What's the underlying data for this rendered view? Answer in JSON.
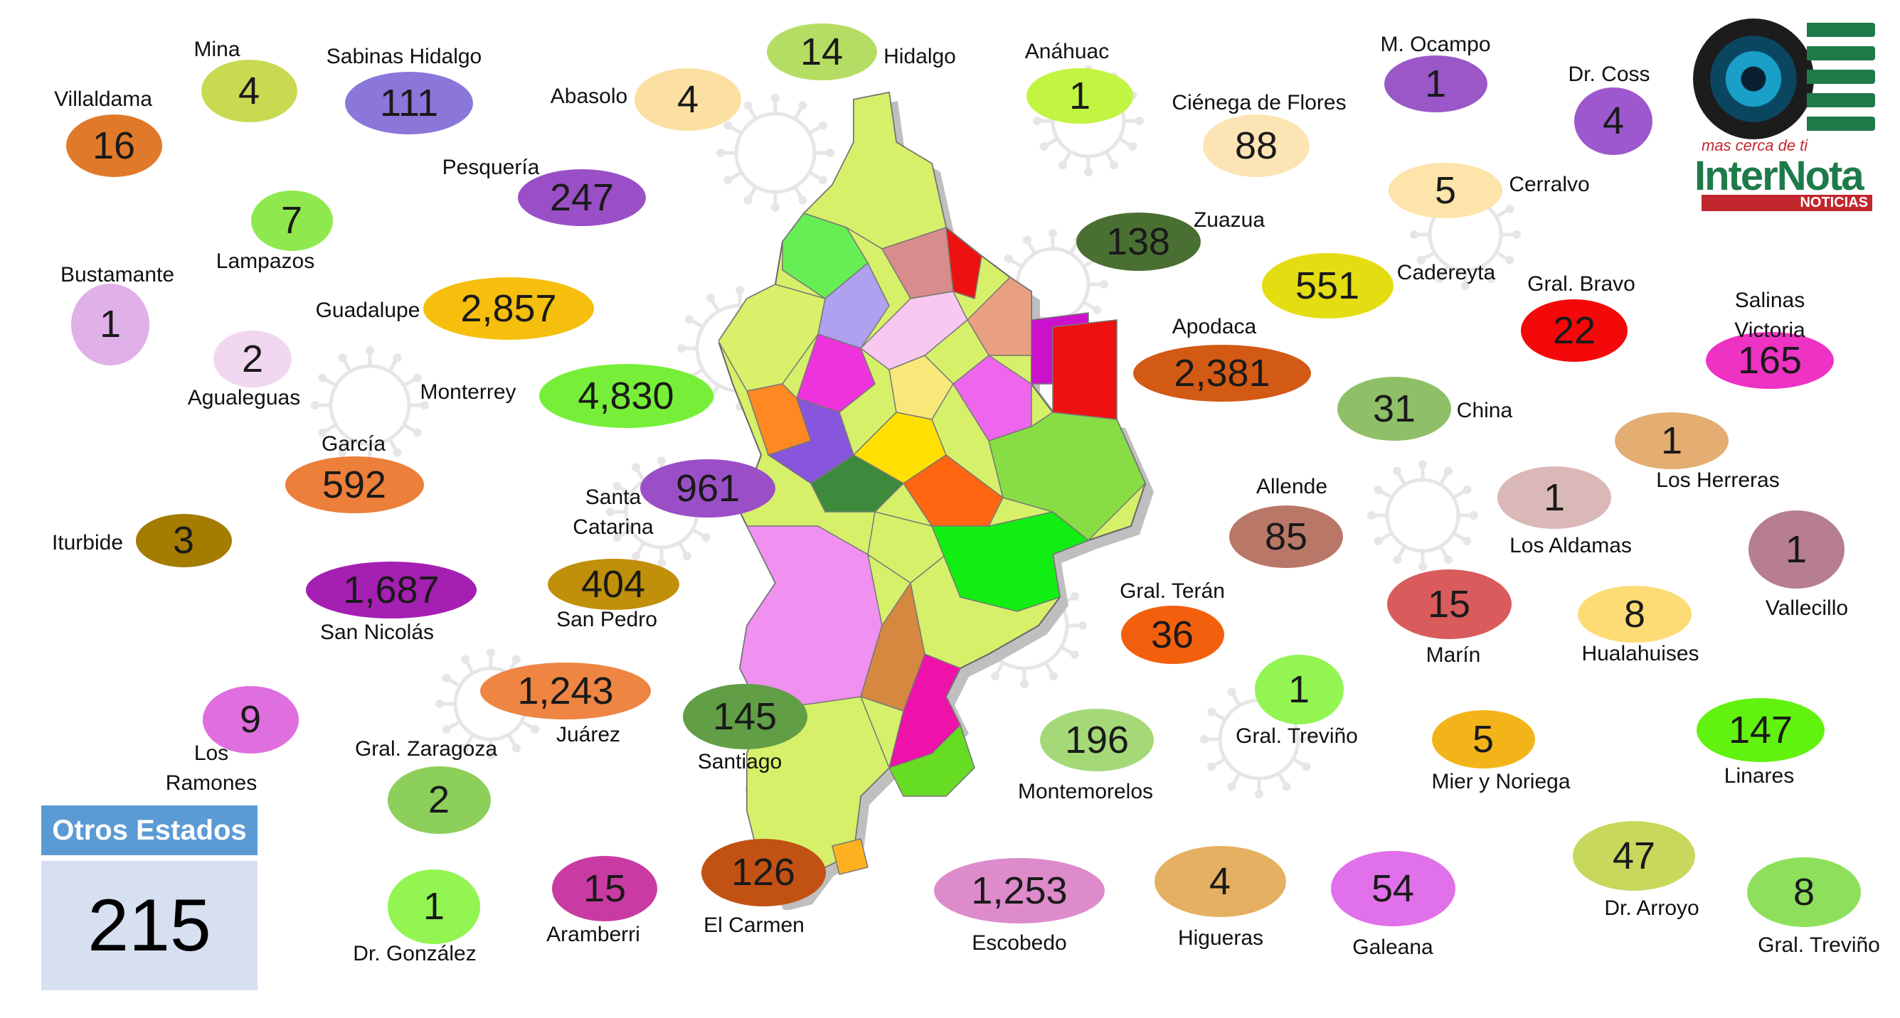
{
  "colors": {
    "otros_header": "#5b9bd5",
    "otros_body": "#d6e0f0",
    "virus": "#e6e6e6",
    "logo_green": "#1f7a4a",
    "logo_red": "#c1272d"
  },
  "otros": {
    "title": "Otros Estados",
    "value": "215"
  },
  "logo": {
    "tagline": "mas cerca de ti",
    "brand_inter": "Inter",
    "brand_nota": "Nota",
    "sub": "NOTICIAS",
    "icon": "camera-lens-icon"
  },
  "municipalities": [
    {
      "name": "Villaldama",
      "value": "16",
      "color": "#e07a2a"
    },
    {
      "name": "Mina",
      "value": "4",
      "color": "#c9da52"
    },
    {
      "name": "Sabinas Hidalgo",
      "value": "111",
      "color": "#8b76d9"
    },
    {
      "name": "Abasolo",
      "value": "4",
      "color": "#fbe0a2"
    },
    {
      "name": "Hidalgo",
      "value": "14",
      "color": "#b6dd63"
    },
    {
      "name": "Anáhuac",
      "value": "1",
      "color": "#c1f542"
    },
    {
      "name": "Ciénega de Flores",
      "value": "88",
      "color": "#fce4b4"
    },
    {
      "name": "M. Ocampo",
      "value": "1",
      "color": "#9b57c8"
    },
    {
      "name": "Dr. Coss",
      "value": "4",
      "color": "#9d58cd"
    },
    {
      "name": "Pesquería",
      "value": "247",
      "color": "#9a4fc6"
    },
    {
      "name": "Cerralvo",
      "value": "5",
      "color": "#fce4aa"
    },
    {
      "name": "Lampazos",
      "value": "7",
      "color": "#8ee84e"
    },
    {
      "name": "Zuazua",
      "value": "138",
      "color": "#4a6f32"
    },
    {
      "name": "Bustamante",
      "value": "1",
      "color": "#e0b0e8"
    },
    {
      "name": "Guadalupe",
      "value": "2,857",
      "color": "#f6be0d"
    },
    {
      "name": "Cadereyta",
      "value": "551",
      "color": "#e4dd12"
    },
    {
      "name": "Gral. Bravo",
      "value": "22",
      "color": "#f30909"
    },
    {
      "name": "Salinas Victoria",
      "value": "165",
      "color": "#ee32c4"
    },
    {
      "name": "Agualeguas",
      "value": "2",
      "color": "#f2d7f0"
    },
    {
      "name": "Apodaca",
      "value": "2,381",
      "color": "#d25a15"
    },
    {
      "name": "Monterrey",
      "value": "4,830",
      "color": "#77ef38"
    },
    {
      "name": "China",
      "value": "31",
      "color": "#8fc068"
    },
    {
      "name": "García",
      "value": "592",
      "color": "#ec7f3a"
    },
    {
      "name": "Los Herreras",
      "value": "1",
      "color": "#e4ad72"
    },
    {
      "name": "Santa Catarina",
      "value": "961",
      "color": "#9a4fc6"
    },
    {
      "name": "Los Aldamas",
      "value": "1",
      "color": "#dbb8b8"
    },
    {
      "name": "Allende",
      "value": "85",
      "color": "#b97768"
    },
    {
      "name": "Iturbide",
      "value": "3",
      "color": "#a37c00"
    },
    {
      "name": "Vallecillo",
      "value": "1",
      "color": "#b67e8e"
    },
    {
      "name": "San Nicolás",
      "value": "1,687",
      "color": "#a51fb2"
    },
    {
      "name": "San Pedro",
      "value": "404",
      "color": "#c0900b"
    },
    {
      "name": "Gral. Terán",
      "value": "36",
      "color": "#f2600d"
    },
    {
      "name": "Marín",
      "value": "15",
      "color": "#d95b5b"
    },
    {
      "name": "Hualahuises",
      "value": "8",
      "color": "#fddc75"
    },
    {
      "name": "Juárez",
      "value": "1,243",
      "color": "#ee8542"
    },
    {
      "name": "Gral. Treviño",
      "value": "1",
      "color": "#92f552"
    },
    {
      "name": "Los Ramones",
      "value": "9",
      "color": "#df6ede"
    },
    {
      "name": "Santiago",
      "value": "145",
      "color": "#619e45"
    },
    {
      "name": "Montemorelos",
      "value": "196",
      "color": "#a5d977"
    },
    {
      "name": "Mier y Noriega",
      "value": "5",
      "color": "#f3b419"
    },
    {
      "name": "Linares",
      "value": "147",
      "color": "#62f20f"
    },
    {
      "name": "Gral. Zaragoza",
      "value": "2",
      "color": "#8ccf5a"
    },
    {
      "name": "Dr. Arroyo",
      "value": "47",
      "color": "#c7d85c"
    },
    {
      "name": "Aramberri",
      "value": "15",
      "color": "#c93ba2"
    },
    {
      "name": "El Carmen",
      "value": "126",
      "color": "#c25114"
    },
    {
      "name": "Escobedo",
      "value": "1,253",
      "color": "#dd8bcb"
    },
    {
      "name": "Higueras",
      "value": "4",
      "color": "#e5b061"
    },
    {
      "name": "Galeana",
      "value": "54",
      "color": "#e171ea"
    },
    {
      "name": "Gral. Treviño",
      "value": "8",
      "color": "#8ee05c"
    },
    {
      "name": "Dr. González",
      "value": "1",
      "color": "#92f552"
    }
  ]
}
